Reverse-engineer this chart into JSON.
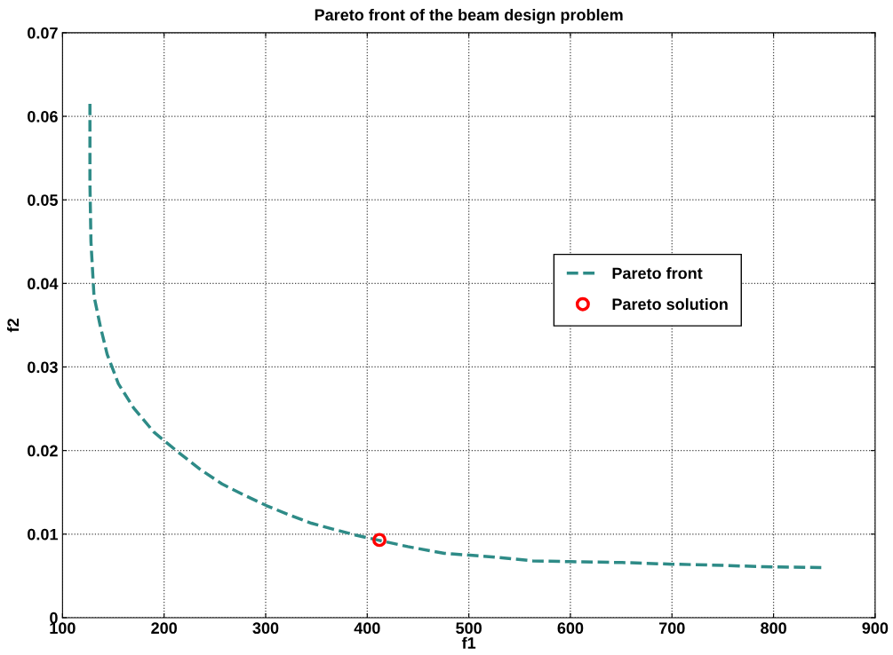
{
  "chart_data": {
    "type": "line",
    "title": "Pareto front of the beam design problem",
    "xlabel": "f1",
    "ylabel": "f2",
    "xlim": [
      100,
      900
    ],
    "xticks": [
      100,
      200,
      300,
      400,
      500,
      600,
      700,
      800,
      900
    ],
    "ylim": [
      0,
      0.07
    ],
    "yticks": [
      0,
      0.01,
      0.02,
      0.03,
      0.04,
      0.05,
      0.06,
      0.07
    ],
    "grid": true,
    "legend": "right",
    "series": [
      {
        "name": "Pareto front",
        "line_style": "dashed",
        "marker": "none",
        "color": "#2e8b87",
        "x": [
          127,
          127,
          128,
          131,
          137,
          144,
          155,
          170,
          190,
          214,
          235,
          257,
          280,
          301,
          323,
          345,
          366,
          388,
          410,
          440,
          476,
          520,
          563,
          600,
          651,
          700,
          738,
          790,
          847
        ],
        "values": [
          0.0615,
          0.052,
          0.045,
          0.0385,
          0.035,
          0.0315,
          0.028,
          0.0251,
          0.0222,
          0.0198,
          0.0178,
          0.016,
          0.0146,
          0.0134,
          0.0123,
          0.0113,
          0.0106,
          0.0099,
          0.0093,
          0.0085,
          0.0077,
          0.0073,
          0.0068,
          0.0067,
          0.0066,
          0.0064,
          0.0063,
          0.0061,
          0.006
        ]
      },
      {
        "name": "Pareto solution",
        "type": "scatter",
        "marker": "circle",
        "color": "#ff0000",
        "x": [
          412
        ],
        "values": [
          0.0093
        ]
      }
    ]
  }
}
